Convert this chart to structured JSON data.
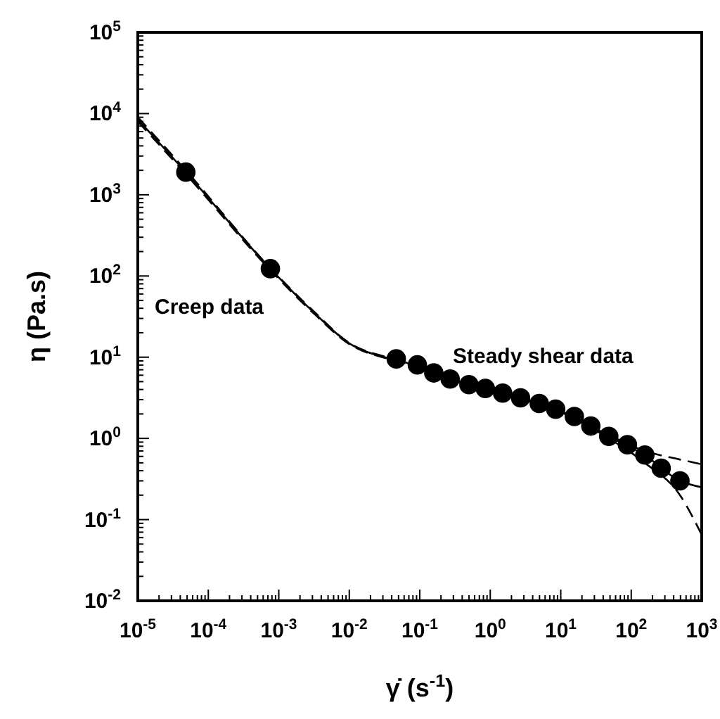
{
  "chart_data": {
    "type": "scatter",
    "xlabel": "γ̇ (s$^{-1}$)",
    "ylabel": "η (Pa.s)",
    "log": "xy",
    "grid": false,
    "xlim": [
      1e-05,
      1000
    ],
    "ylim": [
      0.01,
      100000
    ],
    "xticks": [
      {
        "value": 1e-05,
        "label": "10$^{-5}$"
      },
      {
        "value": 0.0001,
        "label": "10$^{-4}$"
      },
      {
        "value": 0.001,
        "label": "10$^{-3}$"
      },
      {
        "value": 0.01,
        "label": "10$^{-2}$"
      },
      {
        "value": 0.1,
        "label": "10$^{-1}$"
      },
      {
        "value": 1,
        "label": "10$^{0}$"
      },
      {
        "value": 10,
        "label": "10$^{1}$"
      },
      {
        "value": 100,
        "label": "10$^{2}$"
      },
      {
        "value": 1000,
        "label": "10$^{3}$"
      }
    ],
    "yticks": [
      {
        "value": 0.01,
        "label": "10$^{-2}$"
      },
      {
        "value": 0.1,
        "label": "10$^{-1}$"
      },
      {
        "value": 1,
        "label": "10$^{0}$"
      },
      {
        "value": 10,
        "label": "10$^{1}$"
      },
      {
        "value": 100,
        "label": "10$^{2}$"
      },
      {
        "value": 1000,
        "label": "10$^{3}$"
      },
      {
        "value": 10000,
        "label": "10$^{4}$"
      },
      {
        "value": 100000,
        "label": "10$^{5}$"
      }
    ],
    "series": [
      {
        "color": "#000000",
        "marker": "circle",
        "x": [
          4.8e-05,
          0.00076,
          0.0464,
          0.0925,
          0.158,
          0.27,
          0.498,
          0.851,
          1.5,
          2.69,
          4.95,
          8.47,
          15.6,
          26.7,
          48,
          88.3,
          156,
          266,
          491
        ],
        "values": [
          1900,
          123,
          9.53,
          8.04,
          6.4,
          5.38,
          4.59,
          4.12,
          3.61,
          3.16,
          2.69,
          2.29,
          1.86,
          1.42,
          1.06,
          0.836,
          0.624,
          0.43,
          0.3
        ]
      },
      {
        "type": "line",
        "color": "#000000",
        "marker": "none",
        "line_style": "solid",
        "x": [
          1e-05,
          4.8e-05,
          0.00076,
          0.0032,
          0.01,
          0.032,
          0.0464,
          0.27,
          1.5,
          8.47,
          48,
          156,
          491,
          1000
        ],
        "values": [
          8500,
          1900,
          123,
          35,
          14.8,
          10,
          9.3,
          5.4,
          3.6,
          2.3,
          1.06,
          0.62,
          0.3,
          0.25
        ]
      },
      {
        "type": "line",
        "color": "#000000",
        "marker": "none",
        "line_style": "dashed",
        "x": [
          1e-05,
          4.8e-05,
          0.00076,
          0.0032,
          0.01,
          0.032,
          0.0464,
          0.27,
          1.5,
          8.47,
          48,
          156,
          491,
          1000
        ],
        "values": [
          9000,
          2000,
          125,
          36,
          15,
          10.2,
          9.5,
          5.5,
          3.6,
          2.3,
          1.1,
          0.7,
          0.55,
          0.48
        ]
      },
      {
        "type": "line",
        "color": "#000000",
        "marker": "none",
        "line_style": "dashed",
        "x": [
          1e-05,
          4.8e-05,
          0.00076,
          0.0032,
          0.01,
          0.032,
          0.0464,
          0.27,
          1.5,
          8.47,
          48,
          156,
          491,
          1000
        ],
        "values": [
          8000,
          1800,
          118,
          34,
          14.5,
          9.8,
          9.1,
          5.3,
          3.55,
          2.25,
          1.0,
          0.5,
          0.2,
          0.065
        ]
      }
    ],
    "annotations": [
      "Creep data",
      "Steady shear data"
    ]
  }
}
